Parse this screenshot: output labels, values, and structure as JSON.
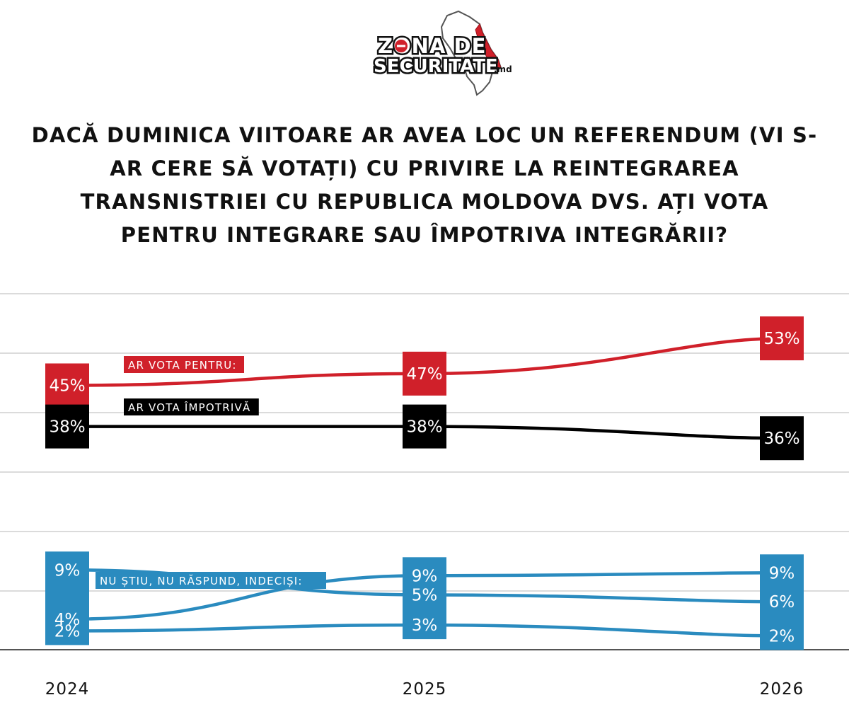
{
  "logo": {
    "line1": "ZONA DE",
    "line2": "SECURITATE",
    "suffix": ".md",
    "icon": "moldova-map-icon"
  },
  "title": "DACĂ DUMINICA VIITOARE AR AVEA LOC UN REFERENDUM (VI S-AR CERE SĂ VOTAȚI) CU PRIVIRE LA REINTEGRAREA TRANSNISTRIEI CU REPUBLICA MOLDOVA DVS. AȚI VOTA PENTRU INTEGRARE  SAU ÎMPOTRIVA INTEGRĂRII?",
  "colors": {
    "red": "#d0202a",
    "black": "#000000",
    "blue": "#2a8bbf",
    "grid": "#cfcfcf"
  },
  "chart_data": {
    "type": "line",
    "categories": [
      "2024",
      "2025",
      "2026"
    ],
    "grid": true,
    "series": [
      {
        "name": "AR VOTA PENTRU:",
        "values": [
          45,
          47,
          53
        ],
        "labels": [
          "45%",
          "47%",
          "53%"
        ],
        "color": "#d0202a"
      },
      {
        "name": "AR VOTA ÎMPOTRIVĂ",
        "values": [
          38,
          38,
          36
        ],
        "labels": [
          "38%",
          "38%",
          "36%"
        ],
        "color": "#000000"
      },
      {
        "name": "NU ȘTIU, NU RĂSPUND, INDECIȘI:",
        "values": [
          9,
          5,
          6
        ],
        "labels": [
          "9%",
          "5%",
          "6%"
        ],
        "color": "#2a8bbf"
      },
      {
        "name": "",
        "values": [
          4,
          9,
          9
        ],
        "labels": [
          "4%",
          "9%",
          "9%"
        ],
        "color": "#2a8bbf"
      },
      {
        "name": "",
        "values": [
          2,
          3,
          2
        ],
        "labels": [
          "2%",
          "3%",
          "2%"
        ],
        "color": "#2a8bbf"
      }
    ]
  }
}
